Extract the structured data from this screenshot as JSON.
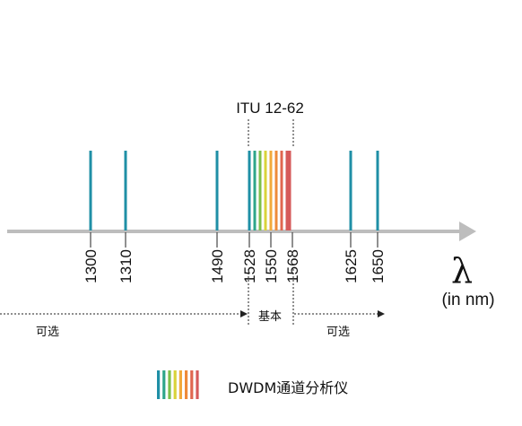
{
  "diagram": {
    "band_label": "ITU 12-62",
    "axis_symbol": "λ",
    "axis_unit": "(in nm)",
    "ticks": [
      {
        "label": "1300",
        "wavelength": 1300
      },
      {
        "label": "1310",
        "wavelength": 1310
      },
      {
        "label": "1490",
        "wavelength": 1490
      },
      {
        "label": "1528",
        "wavelength": 1528
      },
      {
        "label": "1550",
        "wavelength": 1550
      },
      {
        "label": "1568",
        "wavelength": 1568
      },
      {
        "label": "1625",
        "wavelength": 1625
      },
      {
        "label": "1650",
        "wavelength": 1650
      }
    ],
    "channel_lines": [
      1300,
      1310,
      1490,
      1625,
      1650
    ],
    "channel_color": "#1f8fa6",
    "dwdm_colors": [
      "#1f8fa6",
      "#2ea58a",
      "#7cbf4a",
      "#d9d33a",
      "#f2a93b",
      "#ee8a3a",
      "#e0664f",
      "#d65a5a"
    ],
    "ranges": {
      "optional_left": "可选",
      "basic": "基本",
      "optional_right": "可选"
    },
    "legend": {
      "label": "DWDM通道分析仪"
    },
    "colors": {
      "axis": "#bdbdbd",
      "text": "#111111",
      "dashed": "#222222"
    }
  }
}
